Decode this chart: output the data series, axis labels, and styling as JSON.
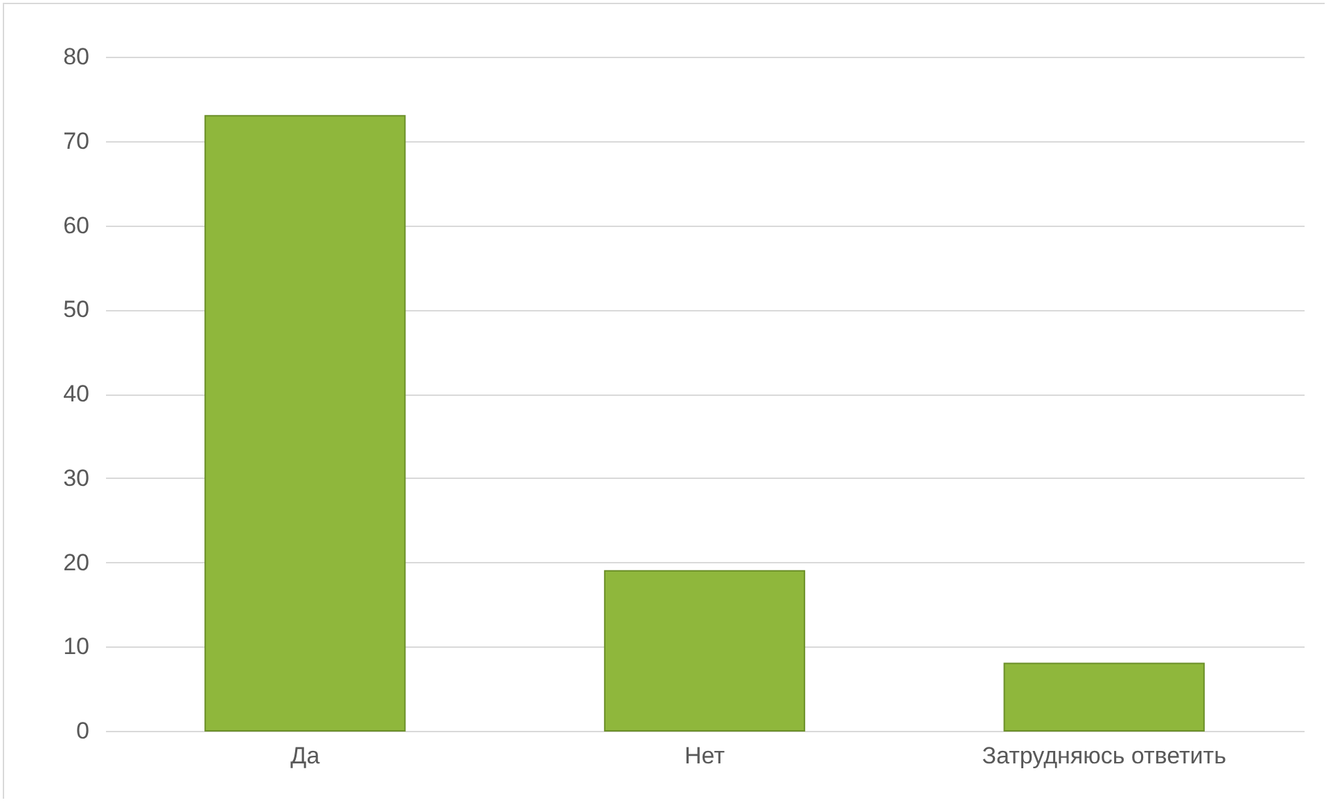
{
  "chart_data": {
    "type": "bar",
    "categories": [
      "Да",
      "Нет",
      "Затрудняюсь ответить"
    ],
    "values": [
      73,
      19,
      8
    ],
    "color": "#8fb73c",
    "ylim": [
      0,
      80
    ],
    "yticks": [
      0,
      10,
      20,
      30,
      40,
      50,
      60,
      70,
      80
    ],
    "grid": "y"
  }
}
